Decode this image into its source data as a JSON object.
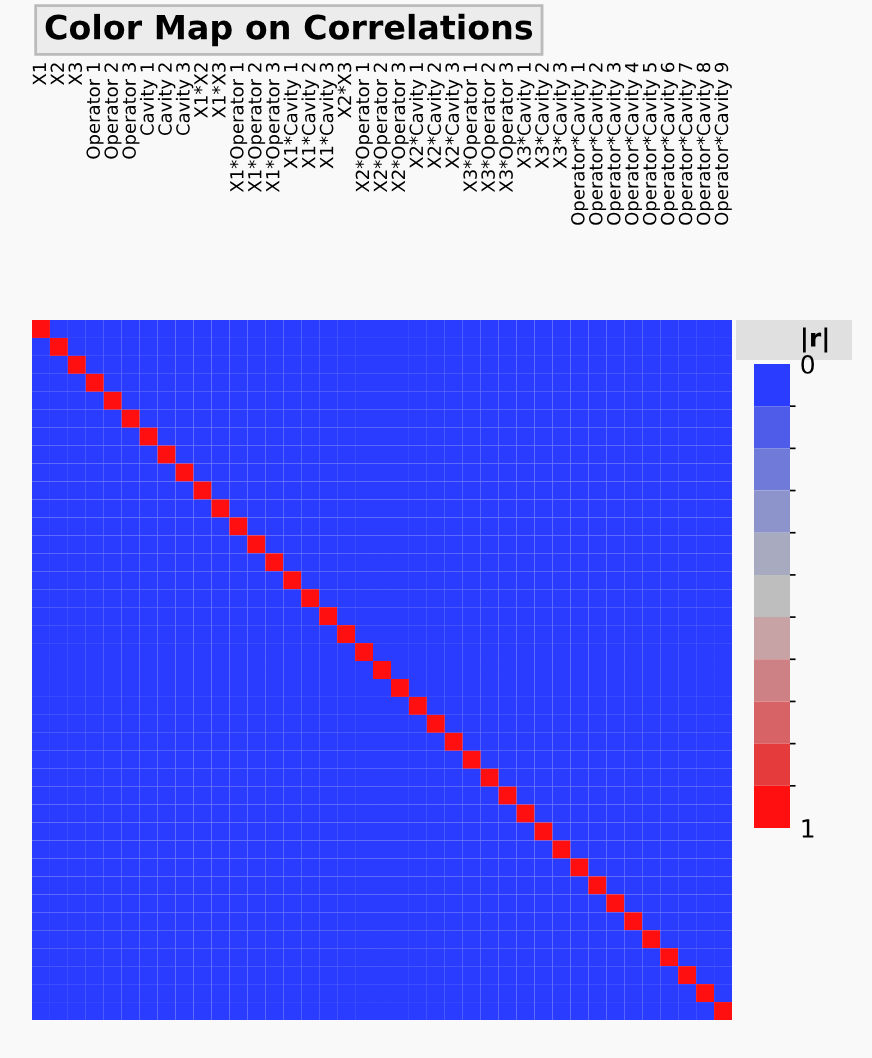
{
  "chart_data": {
    "type": "heatmap",
    "title": "Color Map on Correlations",
    "clabel": "|r|",
    "categories": [
      "X1",
      "X2",
      "X3",
      "Operator 1",
      "Operator 2",
      "Operator 3",
      "Cavity 1",
      "Cavity 2",
      "Cavity 3",
      "X1*X2",
      "X1*X3",
      "X1*Operator 1",
      "X1*Operator 2",
      "X1*Operator 3",
      "X1*Cavity 1",
      "X1*Cavity 2",
      "X1*Cavity 3",
      "X2*X3",
      "X2*Operator 1",
      "X2*Operator 2",
      "X2*Operator 3",
      "X2*Cavity 1",
      "X2*Cavity 2",
      "X2*Cavity 3",
      "X3*Operator 1",
      "X3*Operator 2",
      "X3*Operator 3",
      "X3*Cavity 1",
      "X3*Cavity 2",
      "X3*Cavity 3",
      "Operator*Cavity 1",
      "Operator*Cavity 2",
      "Operator*Cavity 3",
      "Operator*Cavity 4",
      "Operator*Cavity 5",
      "Operator*Cavity 6",
      "Operator*Cavity 7",
      "Operator*Cavity 8",
      "Operator*Cavity 9"
    ],
    "y_categories": [
      null,
      null,
      null,
      null,
      null,
      null,
      null,
      null,
      null,
      null,
      null,
      null,
      null,
      null,
      null,
      null,
      null,
      null,
      null,
      null,
      null,
      null,
      null,
      null,
      null,
      null,
      null,
      null,
      null,
      null,
      null,
      null,
      null,
      null,
      null,
      null,
      null,
      null,
      null
    ],
    "cells": [
      [
        1,
        0,
        0,
        0,
        0,
        0,
        0,
        0,
        0,
        0,
        0,
        0,
        0,
        0,
        0,
        0,
        0,
        0,
        0,
        0,
        0,
        0,
        0,
        0,
        0,
        0,
        0,
        0,
        0,
        0,
        0,
        0,
        0,
        0,
        0,
        0,
        0,
        0,
        0
      ],
      [
        0,
        1,
        0,
        0,
        0,
        0,
        0,
        0,
        0,
        0,
        0,
        0,
        0,
        0,
        0,
        0,
        0,
        0,
        0,
        0,
        0,
        0,
        0,
        0,
        0,
        0,
        0,
        0,
        0,
        0,
        0,
        0,
        0,
        0,
        0,
        0,
        0,
        0,
        0
      ],
      [
        0,
        0,
        1,
        0,
        0,
        0,
        0,
        0,
        0,
        0,
        0,
        0,
        0,
        0,
        0,
        0,
        0,
        0,
        0,
        0,
        0,
        0,
        0,
        0,
        0,
        0,
        0,
        0,
        0,
        0,
        0,
        0,
        0,
        0,
        0,
        0,
        0,
        0,
        0
      ],
      [
        0,
        0,
        0,
        1,
        0,
        0,
        0,
        0,
        0,
        0,
        0,
        0,
        0,
        0,
        0,
        0,
        0,
        0,
        0,
        0,
        0,
        0,
        0,
        0,
        0,
        0,
        0,
        0,
        0,
        0,
        0,
        0,
        0,
        0,
        0,
        0,
        0,
        0,
        0
      ],
      [
        0,
        0,
        0,
        0,
        1,
        0,
        0,
        0,
        0,
        0,
        0,
        0,
        0,
        0,
        0,
        0,
        0,
        0,
        0,
        0,
        0,
        0,
        0,
        0,
        0,
        0,
        0,
        0,
        0,
        0,
        0,
        0,
        0,
        0,
        0,
        0,
        0,
        0,
        0
      ],
      [
        0,
        0,
        0,
        0,
        0,
        1,
        0,
        0,
        0,
        0,
        0,
        0,
        0,
        0,
        0,
        0,
        0,
        0,
        0,
        0,
        0,
        0,
        0,
        0,
        0,
        0,
        0,
        0,
        0,
        0,
        0,
        0,
        0,
        0,
        0,
        0,
        0,
        0,
        0
      ],
      [
        0,
        0,
        0,
        0,
        0,
        0,
        1,
        0,
        0,
        0,
        0,
        0,
        0,
        0,
        0,
        0,
        0,
        0,
        0,
        0,
        0,
        0,
        0,
        0,
        0,
        0,
        0,
        0,
        0,
        0,
        0,
        0,
        0,
        0,
        0,
        0,
        0,
        0,
        0
      ],
      [
        0,
        0,
        0,
        0,
        0,
        0,
        0,
        1,
        0,
        0,
        0,
        0,
        0,
        0,
        0,
        0,
        0,
        0,
        0,
        0,
        0,
        0,
        0,
        0,
        0,
        0,
        0,
        0,
        0,
        0,
        0,
        0,
        0,
        0,
        0,
        0,
        0,
        0,
        0
      ],
      [
        0,
        0,
        0,
        0,
        0,
        0,
        0,
        0,
        1,
        0,
        0,
        0,
        0,
        0,
        0,
        0,
        0,
        0,
        0,
        0,
        0,
        0,
        0,
        0,
        0,
        0,
        0,
        0,
        0,
        0,
        0,
        0,
        0,
        0,
        0,
        0,
        0,
        0,
        0
      ],
      [
        0,
        0,
        0,
        0,
        0,
        0,
        0,
        0,
        0,
        1,
        0,
        0,
        0,
        0,
        0,
        0,
        0,
        0,
        0,
        0,
        0,
        0,
        0,
        0,
        0,
        0,
        0,
        0,
        0,
        0,
        0,
        0,
        0,
        0,
        0,
        0,
        0,
        0,
        0
      ],
      [
        0,
        0,
        0,
        0,
        0,
        0,
        0,
        0,
        0,
        0,
        1,
        0,
        0,
        0,
        0,
        0,
        0,
        0,
        0,
        0,
        0,
        0,
        0,
        0,
        0,
        0,
        0,
        0,
        0,
        0,
        0,
        0,
        0,
        0,
        0,
        0,
        0,
        0,
        0
      ],
      [
        0,
        0,
        0,
        0,
        0,
        0,
        0,
        0,
        0,
        0,
        0,
        1,
        0,
        0,
        0,
        0,
        0,
        0,
        0,
        0,
        0,
        0,
        0,
        0,
        0,
        0,
        0,
        0,
        0,
        0,
        0,
        0,
        0,
        0,
        0,
        0,
        0,
        0,
        0
      ],
      [
        0,
        0,
        0,
        0,
        0,
        0,
        0,
        0,
        0,
        0,
        0,
        0,
        1,
        0,
        0,
        0,
        0,
        0,
        0,
        0,
        0,
        0,
        0,
        0,
        0,
        0,
        0,
        0,
        0,
        0,
        0,
        0,
        0,
        0,
        0,
        0,
        0,
        0,
        0
      ],
      [
        0,
        0,
        0,
        0,
        0,
        0,
        0,
        0,
        0,
        0,
        0,
        0,
        0,
        1,
        0,
        0,
        0,
        0,
        0,
        0,
        0,
        0,
        0,
        0,
        0,
        0,
        0,
        0,
        0,
        0,
        0,
        0,
        0,
        0,
        0,
        0,
        0,
        0,
        0
      ],
      [
        0,
        0,
        0,
        0,
        0,
        0,
        0,
        0,
        0,
        0,
        0,
        0,
        0,
        0,
        1,
        0,
        0,
        0,
        0,
        0,
        0,
        0,
        0,
        0,
        0,
        0,
        0,
        0,
        0,
        0,
        0,
        0,
        0,
        0,
        0,
        0,
        0,
        0,
        0
      ],
      [
        0,
        0,
        0,
        0,
        0,
        0,
        0,
        0,
        0,
        0,
        0,
        0,
        0,
        0,
        0,
        1,
        0,
        0,
        0,
        0,
        0,
        0,
        0,
        0,
        0,
        0,
        0,
        0,
        0,
        0,
        0,
        0,
        0,
        0,
        0,
        0,
        0,
        0,
        0
      ],
      [
        0,
        0,
        0,
        0,
        0,
        0,
        0,
        0,
        0,
        0,
        0,
        0,
        0,
        0,
        0,
        0,
        1,
        0,
        0,
        0,
        0,
        0,
        0,
        0,
        0,
        0,
        0,
        0,
        0,
        0,
        0,
        0,
        0,
        0,
        0,
        0,
        0,
        0,
        0
      ],
      [
        0,
        0,
        0,
        0,
        0,
        0,
        0,
        0,
        0,
        0,
        0,
        0,
        0,
        0,
        0,
        0,
        0,
        1,
        0,
        0,
        0,
        0,
        0,
        0,
        0,
        0,
        0,
        0,
        0,
        0,
        0,
        0,
        0,
        0,
        0,
        0,
        0,
        0,
        0
      ],
      [
        0,
        0,
        0,
        0,
        0,
        0,
        0,
        0,
        0,
        0,
        0,
        0,
        0,
        0,
        0,
        0,
        0,
        0,
        1,
        0,
        0,
        0,
        0,
        0,
        0,
        0,
        0,
        0,
        0,
        0,
        0,
        0,
        0,
        0,
        0,
        0,
        0,
        0,
        0
      ],
      [
        0,
        0,
        0,
        0,
        0,
        0,
        0,
        0,
        0,
        0,
        0,
        0,
        0,
        0,
        0,
        0,
        0,
        0,
        0,
        1,
        0,
        0,
        0,
        0,
        0,
        0,
        0,
        0,
        0,
        0,
        0,
        0,
        0,
        0,
        0,
        0,
        0,
        0,
        0
      ],
      [
        0,
        0,
        0,
        0,
        0,
        0,
        0,
        0,
        0,
        0,
        0,
        0,
        0,
        0,
        0,
        0,
        0,
        0,
        0,
        0,
        1,
        0,
        0,
        0,
        0,
        0,
        0,
        0,
        0,
        0,
        0,
        0,
        0,
        0,
        0,
        0,
        0,
        0,
        0
      ],
      [
        0,
        0,
        0,
        0,
        0,
        0,
        0,
        0,
        0,
        0,
        0,
        0,
        0,
        0,
        0,
        0,
        0,
        0,
        0,
        0,
        0,
        1,
        0,
        0,
        0,
        0,
        0,
        0,
        0,
        0,
        0,
        0,
        0,
        0,
        0,
        0,
        0,
        0,
        0
      ],
      [
        0,
        0,
        0,
        0,
        0,
        0,
        0,
        0,
        0,
        0,
        0,
        0,
        0,
        0,
        0,
        0,
        0,
        0,
        0,
        0,
        0,
        0,
        1,
        0,
        0,
        0,
        0,
        0,
        0,
        0,
        0,
        0,
        0,
        0,
        0,
        0,
        0,
        0,
        0
      ],
      [
        0,
        0,
        0,
        0,
        0,
        0,
        0,
        0,
        0,
        0,
        0,
        0,
        0,
        0,
        0,
        0,
        0,
        0,
        0,
        0,
        0,
        0,
        0,
        1,
        0,
        0,
        0,
        0,
        0,
        0,
        0,
        0,
        0,
        0,
        0,
        0,
        0,
        0,
        0
      ],
      [
        0,
        0,
        0,
        0,
        0,
        0,
        0,
        0,
        0,
        0,
        0,
        0,
        0,
        0,
        0,
        0,
        0,
        0,
        0,
        0,
        0,
        0,
        0,
        0,
        1,
        0,
        0,
        0,
        0,
        0,
        0,
        0,
        0,
        0,
        0,
        0,
        0,
        0,
        0
      ],
      [
        0,
        0,
        0,
        0,
        0,
        0,
        0,
        0,
        0,
        0,
        0,
        0,
        0,
        0,
        0,
        0,
        0,
        0,
        0,
        0,
        0,
        0,
        0,
        0,
        0,
        1,
        0,
        0,
        0,
        0,
        0,
        0,
        0,
        0,
        0,
        0,
        0,
        0,
        0
      ],
      [
        0,
        0,
        0,
        0,
        0,
        0,
        0,
        0,
        0,
        0,
        0,
        0,
        0,
        0,
        0,
        0,
        0,
        0,
        0,
        0,
        0,
        0,
        0,
        0,
        0,
        0,
        1,
        0,
        0,
        0,
        0,
        0,
        0,
        0,
        0,
        0,
        0,
        0,
        0
      ],
      [
        0,
        0,
        0,
        0,
        0,
        0,
        0,
        0,
        0,
        0,
        0,
        0,
        0,
        0,
        0,
        0,
        0,
        0,
        0,
        0,
        0,
        0,
        0,
        0,
        0,
        0,
        0,
        1,
        0,
        0,
        0,
        0,
        0,
        0,
        0,
        0,
        0,
        0,
        0
      ],
      [
        0,
        0,
        0,
        0,
        0,
        0,
        0,
        0,
        0,
        0,
        0,
        0,
        0,
        0,
        0,
        0,
        0,
        0,
        0,
        0,
        0,
        0,
        0,
        0,
        0,
        0,
        0,
        0,
        1,
        0,
        0,
        0,
        0,
        0,
        0,
        0,
        0,
        0,
        0
      ],
      [
        0,
        0,
        0,
        0,
        0,
        0,
        0,
        0,
        0,
        0,
        0,
        0,
        0,
        0,
        0,
        0,
        0,
        0,
        0,
        0,
        0,
        0,
        0,
        0,
        0,
        0,
        0,
        0,
        0,
        1,
        0,
        0,
        0,
        0,
        0,
        0,
        0,
        0,
        0
      ],
      [
        0,
        0,
        0,
        0,
        0,
        0,
        0,
        0,
        0,
        0,
        0,
        0,
        0,
        0,
        0,
        0,
        0,
        0,
        0,
        0,
        0,
        0,
        0,
        0,
        0,
        0,
        0,
        0,
        0,
        0,
        1,
        0,
        0,
        0,
        0,
        0,
        0,
        0,
        0
      ],
      [
        0,
        0,
        0,
        0,
        0,
        0,
        0,
        0,
        0,
        0,
        0,
        0,
        0,
        0,
        0,
        0,
        0,
        0,
        0,
        0,
        0,
        0,
        0,
        0,
        0,
        0,
        0,
        0,
        0,
        0,
        0,
        1,
        0,
        0,
        0,
        0,
        0,
        0,
        0
      ],
      [
        0,
        0,
        0,
        0,
        0,
        0,
        0,
        0,
        0,
        0,
        0,
        0,
        0,
        0,
        0,
        0,
        0,
        0,
        0,
        0,
        0,
        0,
        0,
        0,
        0,
        0,
        0,
        0,
        0,
        0,
        0,
        0,
        1,
        0,
        0,
        0,
        0,
        0,
        0
      ],
      [
        0,
        0,
        0,
        0,
        0,
        0,
        0,
        0,
        0,
        0,
        0,
        0,
        0,
        0,
        0,
        0,
        0,
        0,
        0,
        0,
        0,
        0,
        0,
        0,
        0,
        0,
        0,
        0,
        0,
        0,
        0,
        0,
        0,
        1,
        0,
        0,
        0,
        0,
        0
      ],
      [
        0,
        0,
        0,
        0,
        0,
        0,
        0,
        0,
        0,
        0,
        0,
        0,
        0,
        0,
        0,
        0,
        0,
        0,
        0,
        0,
        0,
        0,
        0,
        0,
        0,
        0,
        0,
        0,
        0,
        0,
        0,
        0,
        0,
        0,
        1,
        0,
        0,
        0,
        0
      ],
      [
        0,
        0,
        0,
        0,
        0,
        0,
        0,
        0,
        0,
        0,
        0,
        0,
        0,
        0,
        0,
        0,
        0,
        0,
        0,
        0,
        0,
        0,
        0,
        0,
        0,
        0,
        0,
        0,
        0,
        0,
        0,
        0,
        0,
        0,
        0,
        1,
        0,
        0,
        0
      ],
      [
        0,
        0,
        0,
        0,
        0,
        0,
        0,
        0,
        0,
        0,
        0,
        0,
        0,
        0,
        0,
        0,
        0,
        0,
        0,
        0,
        0,
        0,
        0,
        0,
        0,
        0,
        0,
        0,
        0,
        0,
        0,
        0,
        0,
        0,
        0,
        0,
        1,
        0,
        0
      ],
      [
        0,
        0,
        0,
        0,
        0,
        0,
        0,
        0,
        0,
        0,
        0,
        0,
        0,
        0,
        0,
        0,
        0,
        0,
        0,
        0,
        0,
        0,
        0,
        0,
        0,
        0,
        0,
        0,
        0,
        0,
        0,
        0,
        0,
        0,
        0,
        0,
        0,
        1,
        0
      ],
      [
        0,
        0,
        0,
        0,
        0,
        0,
        0,
        0,
        0,
        0,
        0,
        0,
        0,
        0,
        0,
        0,
        0,
        0,
        0,
        0,
        0,
        0,
        0,
        0,
        0,
        0,
        0,
        0,
        0,
        0,
        0,
        0,
        0,
        0,
        0,
        0,
        0,
        0,
        1
      ]
    ],
    "clim": [
      0,
      1
    ],
    "cticks": [
      0,
      1
    ],
    "colors": [
      "#2a3cff",
      "#4e5ce9",
      "#6f7ad9",
      "#8d93cb",
      "#a8aabf",
      "#bebebe",
      "#c7a3a5",
      "#cd8185",
      "#d86366",
      "#e63b3c",
      "#ff0f0f"
    ]
  }
}
